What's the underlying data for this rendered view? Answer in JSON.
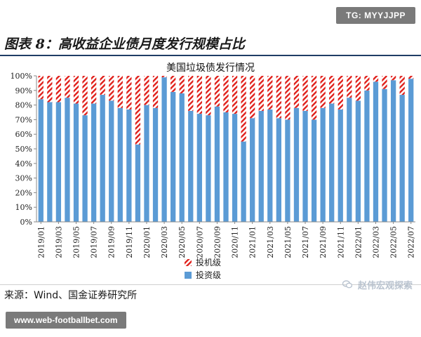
{
  "watermark": "TG: MYYJJPP",
  "figure_title": "图表 8：高收益企业债月度发行规模占比",
  "source": "来源：Wind、国金证券研究所",
  "brand": "赵伟宏观探索",
  "brand_icon": "wechat-icon",
  "site": "www.web-footballbet.com",
  "colors": {
    "ig": "#5b9bd5",
    "hy": "#e0201b",
    "axis": "#888888"
  },
  "chart_data": {
    "type": "bar",
    "stacked": true,
    "title": "美国垃圾债发行情况",
    "x": [
      "2019/01",
      "2019/02",
      "2019/03",
      "2019/04",
      "2019/05",
      "2019/06",
      "2019/07",
      "2019/08",
      "2019/09",
      "2019/10",
      "2019/11",
      "2019/12",
      "2020/01",
      "2020/02",
      "2020/03",
      "2020/04",
      "2020/05",
      "2020/06",
      "2020/07",
      "2020/08",
      "2020/09",
      "2020/10",
      "2020/11",
      "2020/12",
      "2021/01",
      "2021/02",
      "2021/03",
      "2021/04",
      "2021/05",
      "2021/06",
      "2021/07",
      "2021/08",
      "2021/09",
      "2021/10",
      "2021/11",
      "2021/12",
      "2022/01",
      "2022/02",
      "2022/03",
      "2022/04",
      "2022/05",
      "2022/06",
      "2022/07"
    ],
    "x_tick_labels": [
      "2019/01",
      "2019/03",
      "2019/05",
      "2019/07",
      "2019/09",
      "2019/11",
      "2020/01",
      "2020/03",
      "2020/05",
      "2020/07",
      "2020/09",
      "2020/11",
      "2021/01",
      "2021/03",
      "2021/05",
      "2021/07",
      "2021/09",
      "2021/11",
      "2022/01",
      "2022/03",
      "2022/05",
      "2022/07"
    ],
    "y_tick_labels": [
      "0%",
      "10%",
      "20%",
      "30%",
      "40%",
      "50%",
      "60%",
      "70%",
      "80%",
      "90%",
      "100%"
    ],
    "ylim": [
      0,
      100
    ],
    "series": [
      {
        "name": "投资级",
        "values": [
          84,
          82,
          82,
          85,
          81,
          73,
          81,
          87,
          83,
          78,
          77,
          53,
          80,
          78,
          99,
          89,
          88,
          76,
          74,
          73,
          79,
          75,
          74,
          55,
          71,
          76,
          77,
          71,
          70,
          78,
          76,
          70,
          78,
          81,
          77,
          85,
          83,
          90,
          96,
          91,
          97,
          87,
          98
        ]
      },
      {
        "name": "投机级",
        "values": [
          16,
          18,
          18,
          15,
          19,
          27,
          19,
          13,
          17,
          22,
          23,
          47,
          20,
          22,
          1,
          11,
          12,
          24,
          26,
          27,
          21,
          25,
          26,
          45,
          29,
          24,
          23,
          29,
          30,
          22,
          24,
          30,
          22,
          19,
          23,
          15,
          17,
          10,
          4,
          9,
          3,
          13,
          2
        ]
      }
    ],
    "legend": [
      "投机级",
      "投资级"
    ],
    "legend_position": "bottom",
    "grid": false
  }
}
